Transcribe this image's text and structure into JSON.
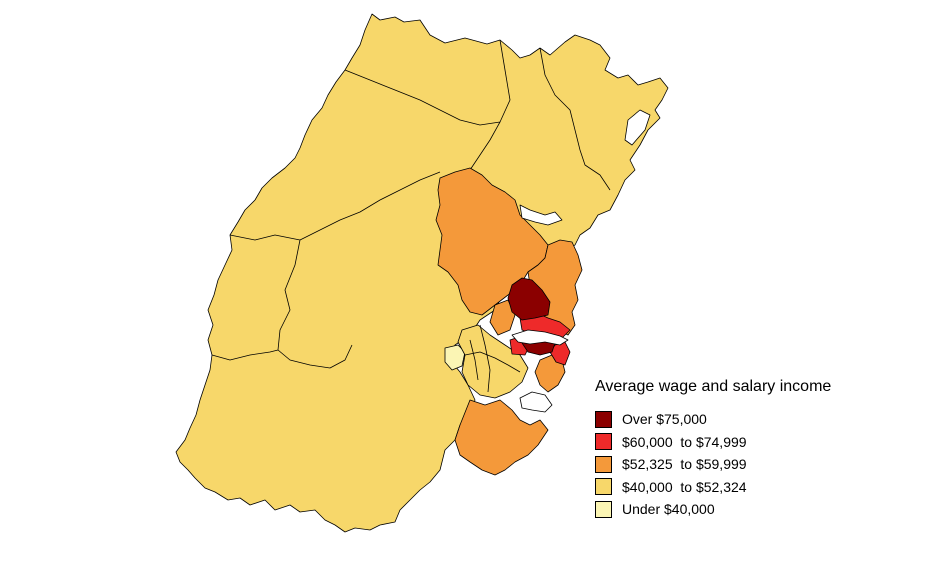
{
  "legend": {
    "title": "Average wage and salary income",
    "items": [
      {
        "label": "Over $75,000",
        "color": "#8b0000"
      },
      {
        "label": "$60,000  to $74,999",
        "color": "#ee2a2a"
      },
      {
        "label": "$52,325  to $59,999",
        "color": "#f4993a"
      },
      {
        "label": "$40,000  to $52,324",
        "color": "#f7d76a"
      },
      {
        "label": "Under $40,000",
        "color": "#fbf5b4"
      }
    ]
  }
}
